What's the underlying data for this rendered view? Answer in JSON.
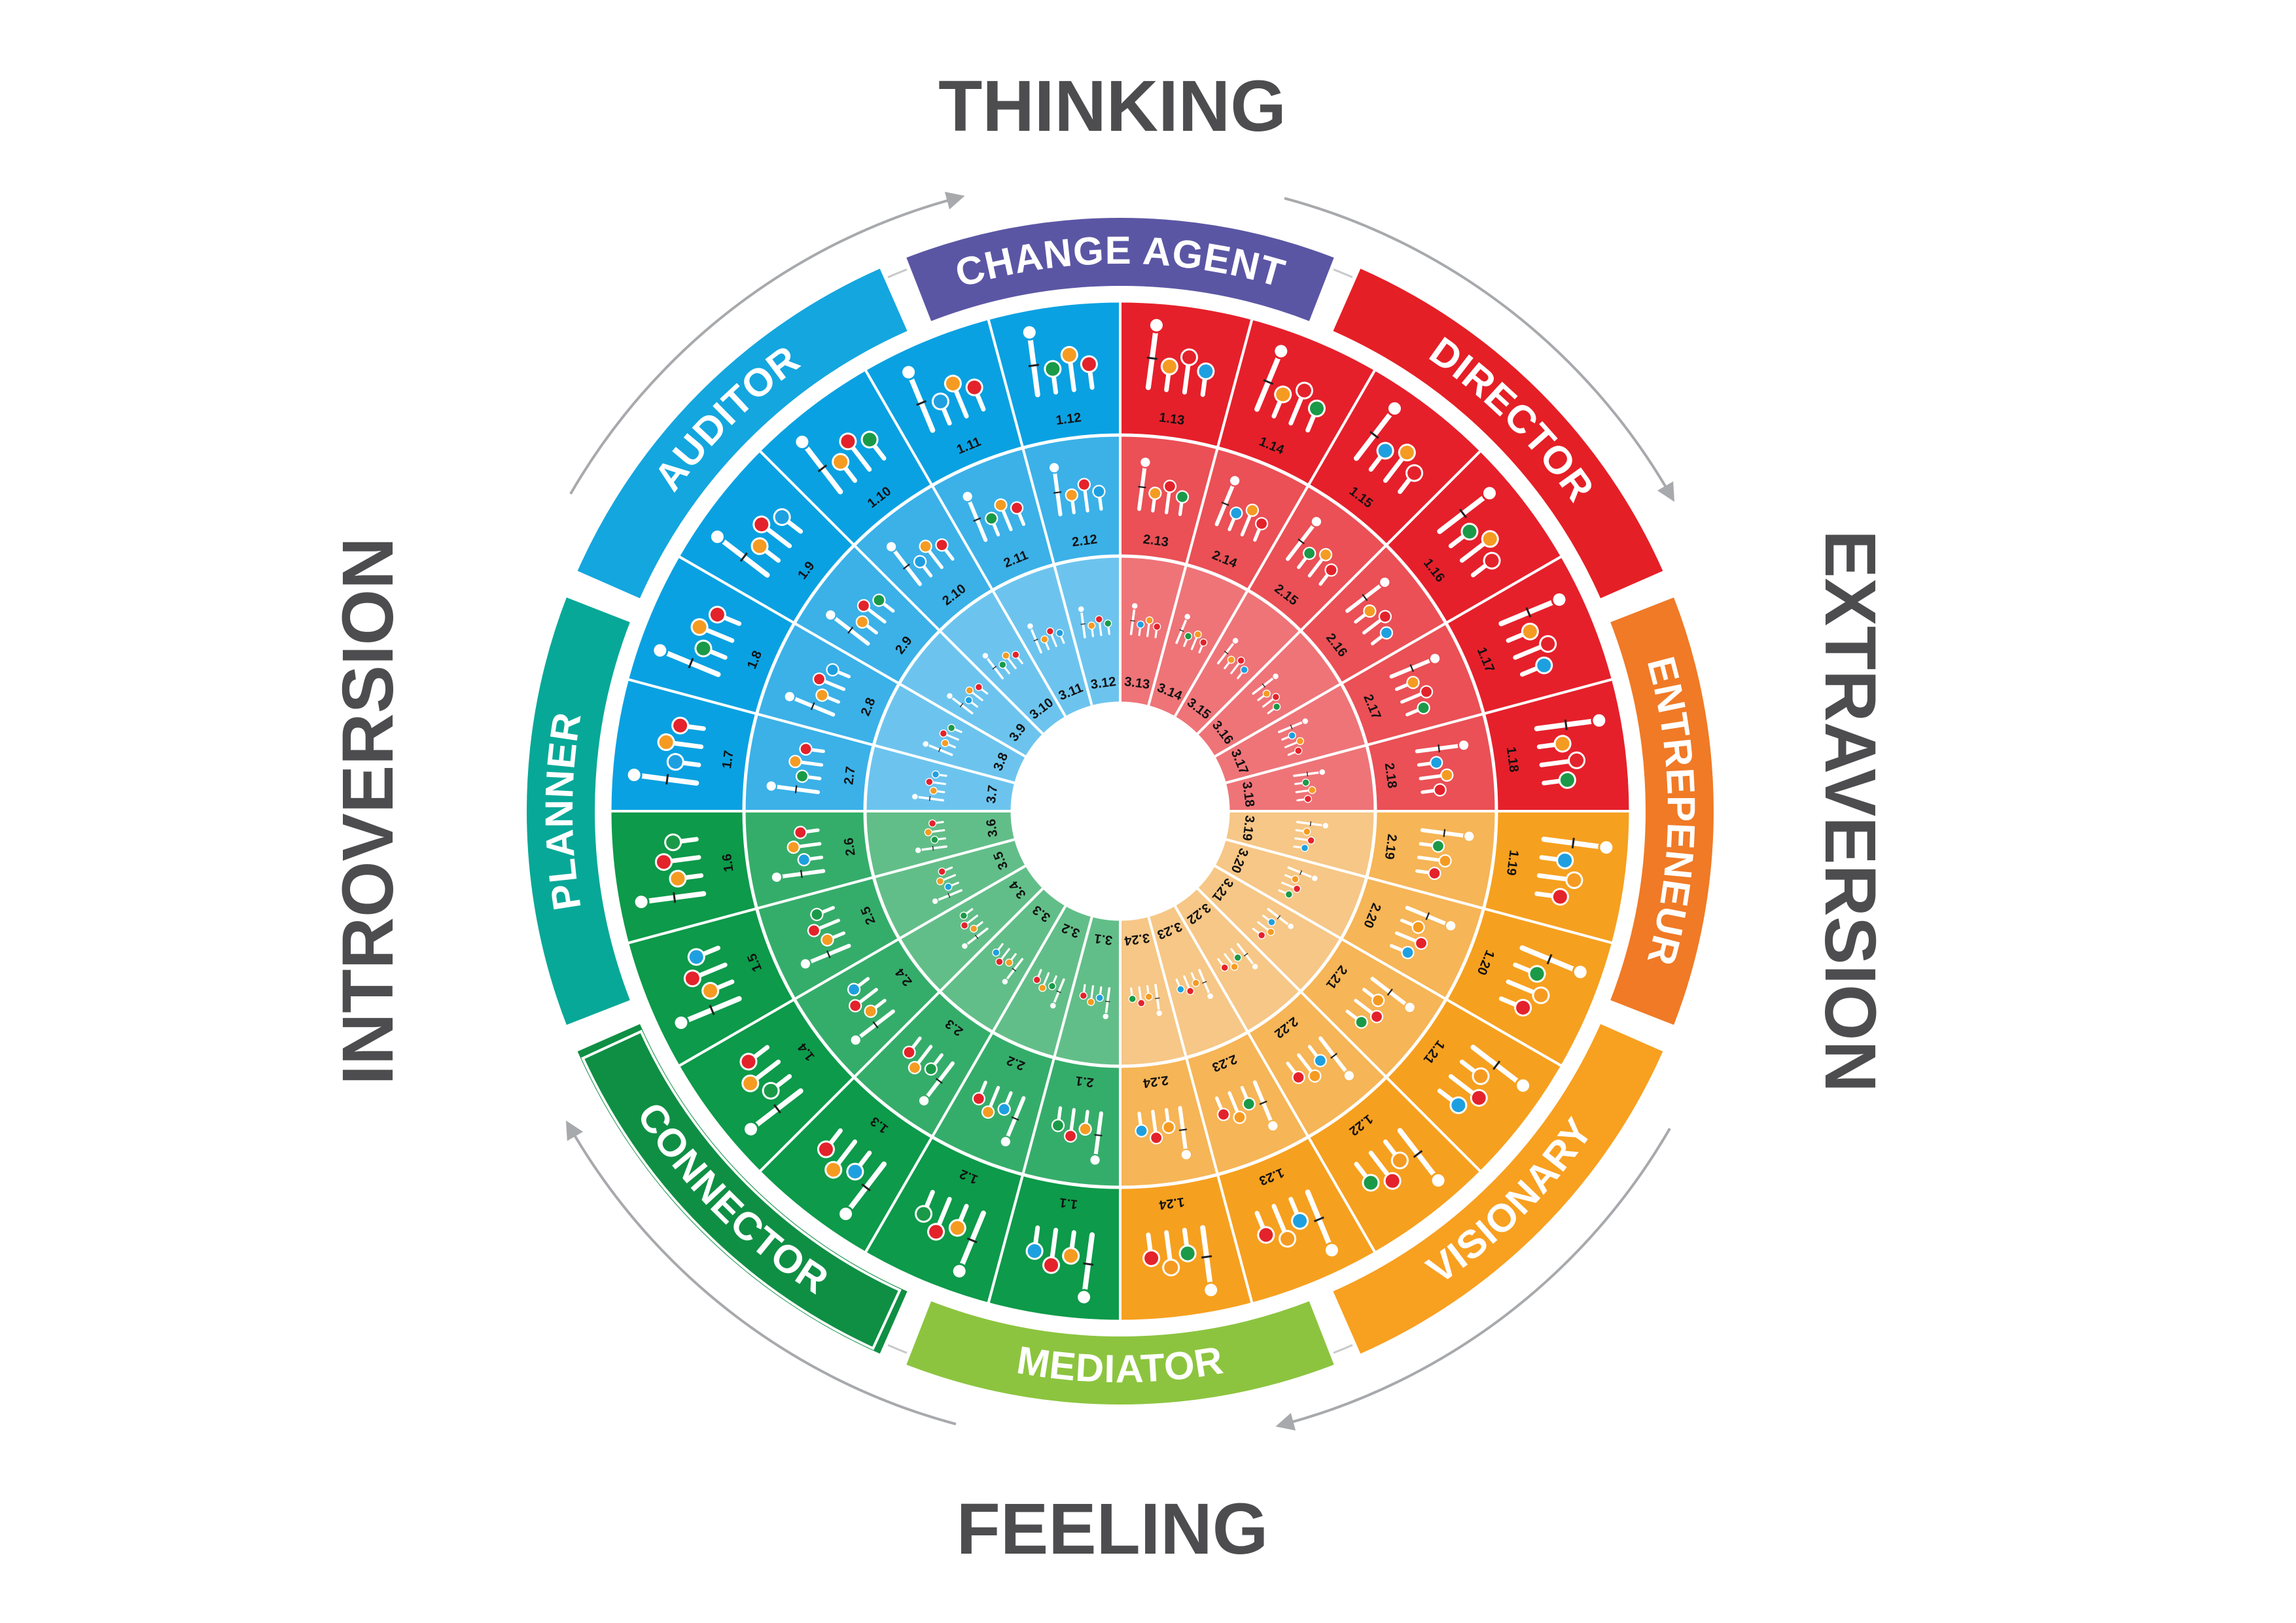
{
  "axes": {
    "top": "THINKING",
    "bottom": "FEELING",
    "left": "INTROVERSION",
    "right": "EXTRAVERSION"
  },
  "outer_segments": [
    {
      "id": "change-agent",
      "label": "CHANGE AGENT",
      "color": "#5b56a4"
    },
    {
      "id": "director",
      "label": "DIRECTOR",
      "color": "#e51f26"
    },
    {
      "id": "entrepreneur",
      "label": "ENTREPENEUR",
      "color": "#f07a26"
    },
    {
      "id": "visionary",
      "label": "VISIONARY",
      "color": "#f8a020"
    },
    {
      "id": "mediator",
      "label": "MEDIATOR",
      "color": "#8cc43f"
    },
    {
      "id": "connector",
      "label": "CONNECTOR",
      "color": "#0f8f44"
    },
    {
      "id": "planner",
      "label": "PLANNER",
      "color": "#07a898"
    },
    {
      "id": "auditor",
      "label": "AUDITOR",
      "color": "#14a6df"
    }
  ],
  "quadrant_colors": {
    "thinking_introversion": [
      "#0aa1e2",
      "#3bb1e8",
      "#6cc4ee"
    ],
    "thinking_extraversion": [
      "#e5202b",
      "#ea5056",
      "#ee7478"
    ],
    "feeling_extraversion": [
      "#f6a01f",
      "#f6b556",
      "#f6c786"
    ],
    "feeling_introversion": [
      "#0d9a4a",
      "#35ad6a",
      "#62be88"
    ]
  },
  "marker_colors": {
    "blue": "#1ea0e0",
    "green": "#1a9a48",
    "orange": "#f59b22",
    "red": "#e4222b",
    "stem": "#ffffff"
  },
  "ring_labels": {
    "ring1": [
      "1.1",
      "1.2",
      "1.3",
      "1.4",
      "1.5",
      "1.6",
      "1.7",
      "1.8",
      "1.9",
      "1.10",
      "1.11",
      "1.12",
      "1.13",
      "1.14",
      "1.15",
      "1.16",
      "1.17",
      "1.18",
      "1.19",
      "1.20",
      "1.21",
      "1.22",
      "1.23",
      "1.24"
    ],
    "ring2": [
      "2.1",
      "2.2",
      "2.3",
      "2.4",
      "2.5",
      "2.6",
      "2.7",
      "2.8",
      "2.9",
      "2.10",
      "2.11",
      "2.12",
      "2.13",
      "2.14",
      "2.15",
      "2.16",
      "2.17",
      "2.18",
      "2.19",
      "2.20",
      "2.21",
      "2.22",
      "2.23",
      "2.24"
    ],
    "ring3": [
      "3.1",
      "3.2",
      "3.3",
      "3.4",
      "3.5",
      "3.6",
      "3.7",
      "3.8",
      "3.9",
      "3.10",
      "3.11",
      "3.12",
      "3.13",
      "3.14",
      "3.15",
      "3.16",
      "3.17",
      "3.18",
      "3.19",
      "3.20",
      "3.21",
      "3.22",
      "3.23",
      "3.24"
    ]
  }
}
